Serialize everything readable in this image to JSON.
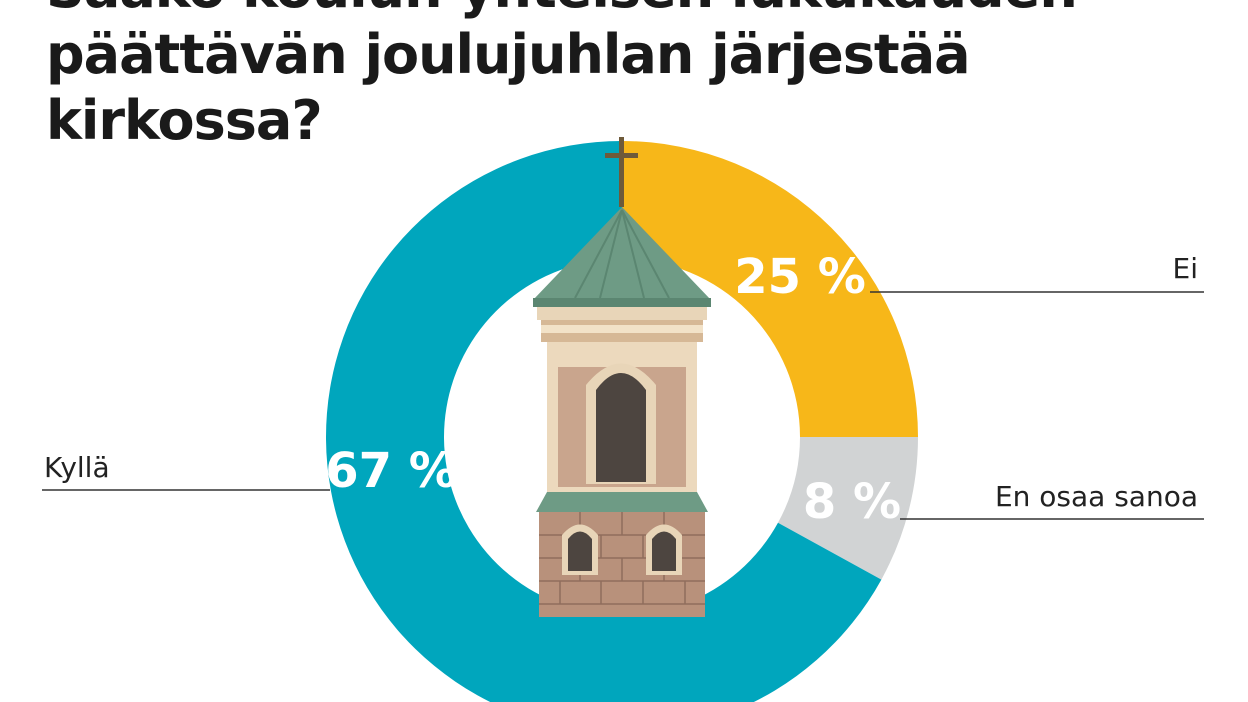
{
  "title": "Saako koulun yhteisen lukukauden päättävän joulujuhlan järjestää kirkossa?",
  "chart_data": {
    "type": "pie",
    "categories": [
      "Ei",
      "En osaa sanoa",
      "Kyllä"
    ],
    "values": [
      25,
      8,
      67
    ],
    "value_labels": [
      "25 %",
      "8 %",
      "67 %"
    ],
    "colors": [
      "#f7b719",
      "#d1d3d4",
      "#00a6bd"
    ],
    "donut": true,
    "start": "top, clockwise"
  },
  "icons": {
    "center": "church-tower-icon"
  }
}
